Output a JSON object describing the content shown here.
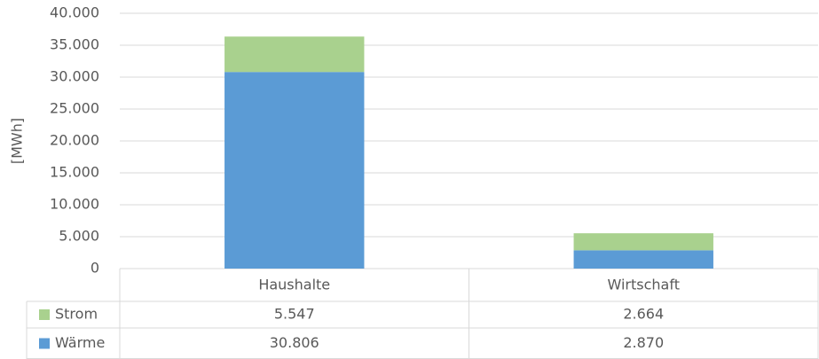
{
  "chart_data": {
    "type": "stacked_bar",
    "y_label": "[MWh]",
    "categories": [
      "Haushalte",
      "Wirtschaft"
    ],
    "series": [
      {
        "name": "Wärme",
        "color": "#5b9bd5",
        "values": [
          30806,
          2870
        ],
        "value_labels": [
          "30.806",
          "2.870"
        ]
      },
      {
        "name": "Strom",
        "color": "#a9d18e",
        "values": [
          5547,
          2664
        ],
        "value_labels": [
          "5.547",
          "2.664"
        ]
      }
    ],
    "ylim": [
      0,
      40000
    ],
    "yticks": [
      0,
      {
        "value": 5000,
        "label": "5.000"
      },
      {
        "value": 10000,
        "label": "10.000"
      },
      {
        "value": 15000,
        "label": "15.000"
      },
      {
        "value": 20000,
        "label": "20.000"
      },
      {
        "value": 25000,
        "label": "25.000"
      },
      {
        "value": 30000,
        "label": "30.000"
      },
      {
        "value": 35000,
        "label": "35.000"
      },
      {
        "value": 40000,
        "label": "40.000"
      }
    ],
    "grid": true,
    "data_table": true
  }
}
